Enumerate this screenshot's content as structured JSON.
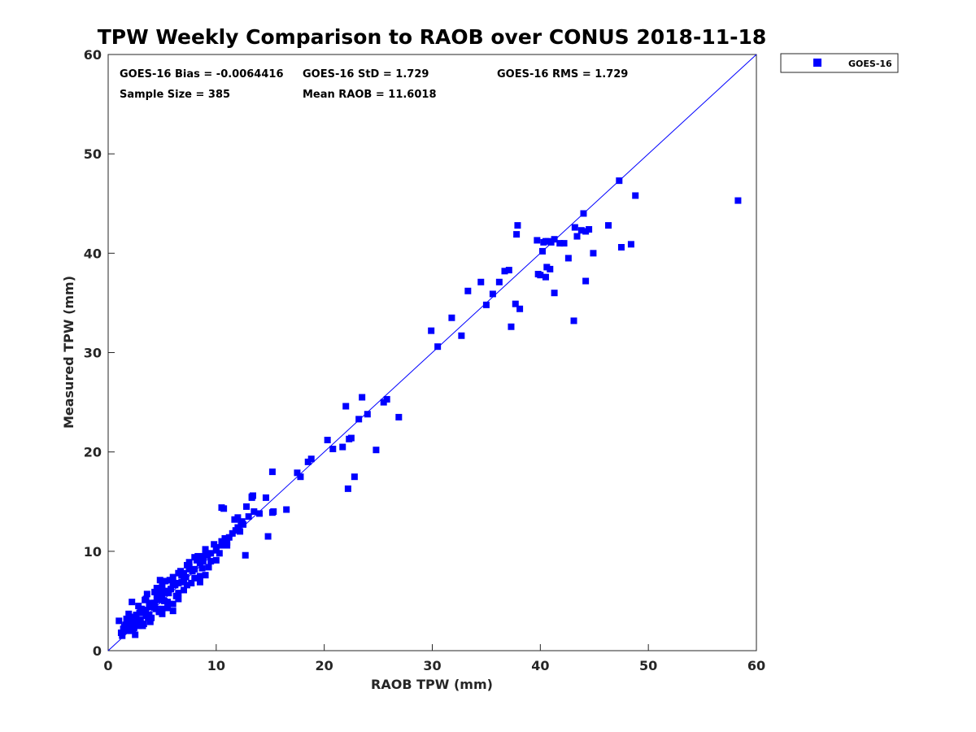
{
  "chart_data": {
    "type": "scatter",
    "title": "TPW Weekly Comparison to RAOB over CONUS 2018-11-18",
    "xlabel": "RAOB TPW (mm)",
    "ylabel": "Measured TPW (mm)",
    "xlim": [
      0,
      60
    ],
    "ylim": [
      0,
      60
    ],
    "xticks": [
      "0",
      "10",
      "20",
      "30",
      "40",
      "50",
      "60"
    ],
    "yticks": [
      "0",
      "10",
      "20",
      "30",
      "40",
      "50",
      "60"
    ],
    "grid": false,
    "legend_position": "outside-top-right",
    "reference_line": {
      "name": "1:1 line",
      "x": [
        0,
        60
      ],
      "y": [
        0,
        60
      ],
      "color": "#0000ff"
    },
    "stats": {
      "bias": "GOES-16 Bias = -0.0064416",
      "std": "GOES-16 StD = 1.729",
      "rms": "GOES-16 RMS = 1.729",
      "sample_size": "Sample Size = 385",
      "mean_raob": "Mean RAOB = 11.6018"
    },
    "series": [
      {
        "name": "GOES-16",
        "color": "#0000ff",
        "marker": "square",
        "x": [
          1.0,
          1.2,
          1.4,
          1.6,
          1.8,
          2.0,
          2.2,
          2.4,
          2.6,
          2.8,
          3.0,
          1.3,
          1.7,
          2.1,
          2.5,
          2.9,
          3.3,
          3.7,
          4.1,
          1.5,
          1.9,
          2.3,
          2.7,
          3.1,
          3.5,
          3.9,
          4.3,
          4.7,
          2.2,
          2.6,
          3.0,
          3.4,
          3.8,
          4.2,
          4.6,
          5.0,
          5.4,
          2.4,
          2.8,
          3.2,
          3.6,
          4.0,
          4.4,
          4.8,
          5.2,
          5.6,
          6.0,
          3.0,
          3.5,
          4.0,
          4.5,
          5.0,
          5.5,
          6.0,
          6.5,
          7.0,
          3.8,
          4.3,
          4.8,
          5.3,
          5.8,
          6.3,
          6.8,
          7.3,
          4.5,
          5.0,
          5.5,
          6.0,
          6.5,
          7.0,
          7.5,
          8.0,
          8.5,
          5.2,
          5.7,
          6.2,
          6.7,
          7.2,
          7.7,
          8.2,
          8.7,
          9.2,
          6.0,
          6.5,
          7.0,
          7.5,
          8.0,
          8.5,
          9.0,
          9.5,
          10.0,
          6.8,
          7.3,
          7.8,
          8.3,
          8.8,
          9.3,
          9.8,
          10.3,
          10.8,
          7.5,
          8.0,
          8.5,
          9.0,
          9.5,
          10.0,
          10.5,
          11.0,
          11.5,
          12.0,
          2.0,
          3.5,
          5.5,
          6.5,
          9.0,
          10.0,
          5.0,
          6.0,
          7.0,
          8.5,
          4.0,
          2.5,
          3.2,
          4.8,
          6.8,
          8.8,
          10.5,
          11.8,
          12.5,
          13.0,
          13.5,
          11.0,
          12.0,
          12.3,
          12.8,
          13.3,
          10.5,
          11.2,
          11.7,
          12.2,
          14.0,
          14.8,
          15.3,
          16.5,
          17.5,
          17.8,
          18.5,
          18.8,
          20.3,
          20.8,
          21.7,
          22.0,
          22.3,
          22.5,
          23.2,
          23.5,
          24.0,
          25.5,
          25.8,
          26.9,
          22.8,
          22.2,
          24.8,
          29.9,
          30.5,
          31.8,
          32.7,
          33.3,
          34.5,
          35.0,
          35.6,
          36.2,
          36.7,
          37.1,
          37.3,
          37.7,
          37.8,
          37.9,
          38.1,
          39.7,
          40.0,
          40.3,
          40.5,
          40.7,
          41.0,
          41.3,
          41.8,
          42.2,
          42.6,
          43.2,
          43.4,
          43.8,
          44.0,
          44.2,
          44.5,
          44.9,
          46.3,
          47.3,
          47.5,
          48.4,
          48.8,
          39.8,
          40.2,
          40.5,
          40.9,
          40.6,
          43.1,
          44.2,
          41.3,
          58.3,
          12.7,
          14.6,
          15.2,
          13.3,
          13.4,
          15.2,
          12.4,
          10.7
        ],
        "y": [
          3.0,
          1.8,
          2.2,
          2.6,
          2.0,
          3.4,
          2.8,
          2.3,
          3.6,
          2.5,
          3.1,
          1.5,
          3.2,
          2.0,
          2.9,
          3.8,
          2.7,
          3.3,
          4.4,
          2.4,
          3.7,
          2.1,
          3.0,
          4.2,
          3.5,
          2.9,
          4.8,
          3.9,
          4.9,
          3.3,
          4.0,
          5.1,
          3.6,
          4.5,
          5.5,
          4.2,
          6.0,
          2.7,
          4.5,
          3.8,
          5.7,
          4.8,
          4.2,
          6.1,
          5.0,
          5.8,
          4.7,
          3.9,
          5.2,
          4.4,
          6.3,
          5.6,
          4.9,
          6.7,
          5.8,
          7.2,
          4.6,
          5.9,
          5.1,
          7.0,
          6.2,
          5.5,
          7.6,
          6.6,
          5.3,
          6.6,
          5.9,
          7.4,
          6.8,
          6.1,
          8.2,
          7.3,
          8.8,
          6.0,
          7.1,
          6.6,
          8.0,
          7.4,
          6.8,
          9.1,
          8.3,
          9.6,
          6.8,
          7.8,
          7.2,
          8.9,
          8.2,
          7.5,
          9.8,
          9.0,
          10.4,
          7.6,
          8.6,
          8.0,
          9.5,
          9.0,
          8.4,
          10.7,
          9.8,
          11.3,
          8.4,
          9.4,
          8.8,
          10.2,
          9.8,
          9.1,
          11.0,
          10.6,
          11.8,
          12.4,
          2.6,
          4.1,
          4.3,
          5.2,
          7.6,
          10.1,
          3.7,
          4.0,
          7.8,
          6.9,
          3.3,
          1.6,
          2.5,
          7.1,
          6.9,
          9.5,
          10.6,
          12.1,
          12.7,
          13.5,
          14.0,
          10.9,
          13.4,
          12.9,
          14.5,
          15.5,
          14.4,
          11.4,
          13.2,
          12.0,
          13.8,
          11.5,
          14.0,
          14.2,
          17.9,
          17.5,
          19.0,
          19.3,
          21.2,
          20.3,
          20.5,
          24.6,
          21.3,
          21.4,
          23.3,
          25.5,
          23.8,
          25.0,
          25.3,
          23.5,
          17.5,
          16.3,
          20.2,
          32.2,
          30.6,
          33.5,
          31.7,
          36.2,
          37.1,
          34.8,
          35.9,
          37.1,
          38.2,
          38.3,
          32.6,
          34.9,
          41.9,
          42.8,
          34.4,
          41.3,
          37.8,
          41.1,
          41.2,
          41.2,
          41.1,
          41.4,
          41.0,
          41.0,
          39.5,
          42.6,
          41.7,
          42.3,
          44.0,
          42.2,
          42.4,
          40.0,
          42.8,
          47.3,
          40.6,
          40.9,
          45.8,
          37.9,
          40.2,
          37.6,
          38.4,
          38.6,
          33.2,
          37.2,
          36.0,
          45.3,
          9.6,
          15.4,
          18.0,
          15.4,
          15.6,
          13.9,
          13.0,
          14.3
        ]
      }
    ]
  }
}
